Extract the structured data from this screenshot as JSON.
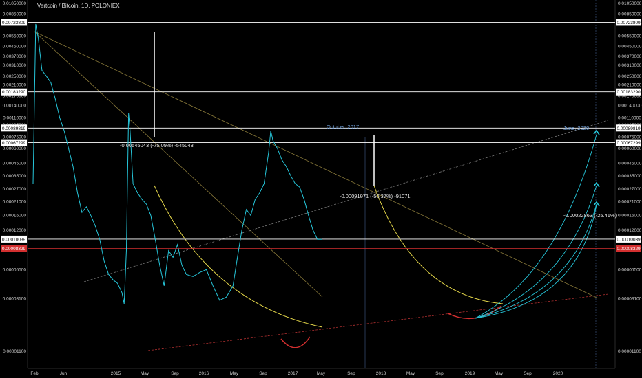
{
  "header": {
    "symbol": "Vertcoin / Bitcoin, 1D, POLONIEX"
  },
  "chart_data": {
    "type": "line",
    "y_scale": "log",
    "ylim": [
      8.5e-06,
      0.0105
    ],
    "y_ticks": [
      "0.01050000",
      "0.00850000",
      "0.00700000",
      "0.00550000",
      "0.00450000",
      "0.00370000",
      "0.00310000",
      "0.00250000",
      "0.00210000",
      "0.00170000",
      "0.00140000",
      "0.00110000",
      "0.00095000",
      "0.00075000",
      "0.00060000",
      "0.00045000",
      "0.00035000",
      "0.00027000",
      "0.00021000",
      "0.00016000",
      "0.00012000",
      "0.00008500",
      "0.00005500",
      "0.00003100",
      "0.00001100"
    ],
    "x_ticks": [
      "Feb",
      "Jun",
      "2015",
      "May",
      "Sep",
      "2016",
      "May",
      "Sep",
      "2017",
      "May",
      "Sep",
      "2018",
      "May",
      "Sep",
      "2019",
      "May",
      "Sep",
      "2020"
    ],
    "price_levels": [
      {
        "label": "0.00723809",
        "color": "#ffffff",
        "value": 0.00723809
      },
      {
        "label": "0.00183290",
        "color": "#ffffff",
        "value": 0.0018329
      },
      {
        "label": "0.00089819",
        "color": "#ffffff",
        "value": 0.00089819
      },
      {
        "label": "0.00067299",
        "color": "#ffffff",
        "value": 0.00067299
      },
      {
        "label": "0.00010039",
        "color": "#ffffff",
        "value": 0.00010039
      },
      {
        "label": "0.00008329",
        "color": "#d32f2f",
        "value": 8.329e-05
      }
    ],
    "annotations": [
      {
        "text": "-0.00545043 (-75.09%) -545043"
      },
      {
        "text": "October, 2017"
      },
      {
        "text": "-0.00091071 (-50.37%) -91071"
      },
      {
        "text": "June, 2020"
      },
      {
        "text": "-0.00022863 (-25.41%)"
      }
    ],
    "series": [
      {
        "color": "#26c6da",
        "points": [
          [
            0.0,
            0.0003
          ],
          [
            0.006,
            0.007
          ],
          [
            0.012,
            0.0052
          ],
          [
            0.02,
            0.0028
          ],
          [
            0.03,
            0.0025
          ],
          [
            0.04,
            0.0022
          ],
          [
            0.05,
            0.0016
          ],
          [
            0.06,
            0.0011
          ],
          [
            0.07,
            0.00085
          ],
          [
            0.08,
            0.0006
          ],
          [
            0.09,
            0.00042
          ],
          [
            0.1,
            0.00025
          ],
          [
            0.11,
            0.00017
          ],
          [
            0.12,
            0.00019
          ],
          [
            0.13,
            0.00016
          ],
          [
            0.14,
            0.00013
          ],
          [
            0.15,
            0.0001
          ],
          [
            0.16,
            6.5e-05
          ],
          [
            0.17,
            5e-05
          ],
          [
            0.18,
            4.5e-05
          ],
          [
            0.19,
            4.2e-05
          ],
          [
            0.2,
            3.5e-05
          ],
          [
            0.205,
            2.8e-05
          ],
          [
            0.21,
            8e-05
          ],
          [
            0.215,
            0.0012
          ],
          [
            0.218,
            0.0009
          ],
          [
            0.225,
            0.0003
          ],
          [
            0.235,
            0.00025
          ],
          [
            0.245,
            0.00022
          ],
          [
            0.255,
            0.0002
          ],
          [
            0.265,
            0.00016
          ],
          [
            0.275,
            0.0001
          ],
          [
            0.285,
            6e-05
          ],
          [
            0.295,
            4e-05
          ],
          [
            0.305,
            8e-05
          ],
          [
            0.315,
            7e-05
          ],
          [
            0.325,
            9e-05
          ],
          [
            0.335,
            6e-05
          ],
          [
            0.345,
            5e-05
          ],
          [
            0.36,
            4.8e-05
          ],
          [
            0.375,
            5.2e-05
          ],
          [
            0.39,
            5.5e-05
          ],
          [
            0.405,
            4e-05
          ],
          [
            0.42,
            3e-05
          ],
          [
            0.435,
            3.2e-05
          ],
          [
            0.45,
            4e-05
          ],
          [
            0.46,
            7e-05
          ],
          [
            0.47,
            0.00012
          ],
          [
            0.48,
            0.00018
          ],
          [
            0.49,
            0.00016
          ],
          [
            0.5,
            0.00022
          ],
          [
            0.51,
            0.00025
          ],
          [
            0.52,
            0.0003
          ],
          [
            0.53,
            0.00055
          ],
          [
            0.535,
            0.00085
          ],
          [
            0.54,
            0.0007
          ],
          [
            0.55,
            0.0006
          ],
          [
            0.56,
            0.00048
          ],
          [
            0.57,
            0.00042
          ],
          [
            0.58,
            0.00035
          ],
          [
            0.59,
            0.0003
          ],
          [
            0.6,
            0.00028
          ],
          [
            0.61,
            0.00022
          ],
          [
            0.62,
            0.00016
          ],
          [
            0.63,
            0.00012
          ],
          [
            0.64,
            0.0001
          ],
          [
            0.65,
            0.0001
          ]
        ]
      }
    ]
  }
}
